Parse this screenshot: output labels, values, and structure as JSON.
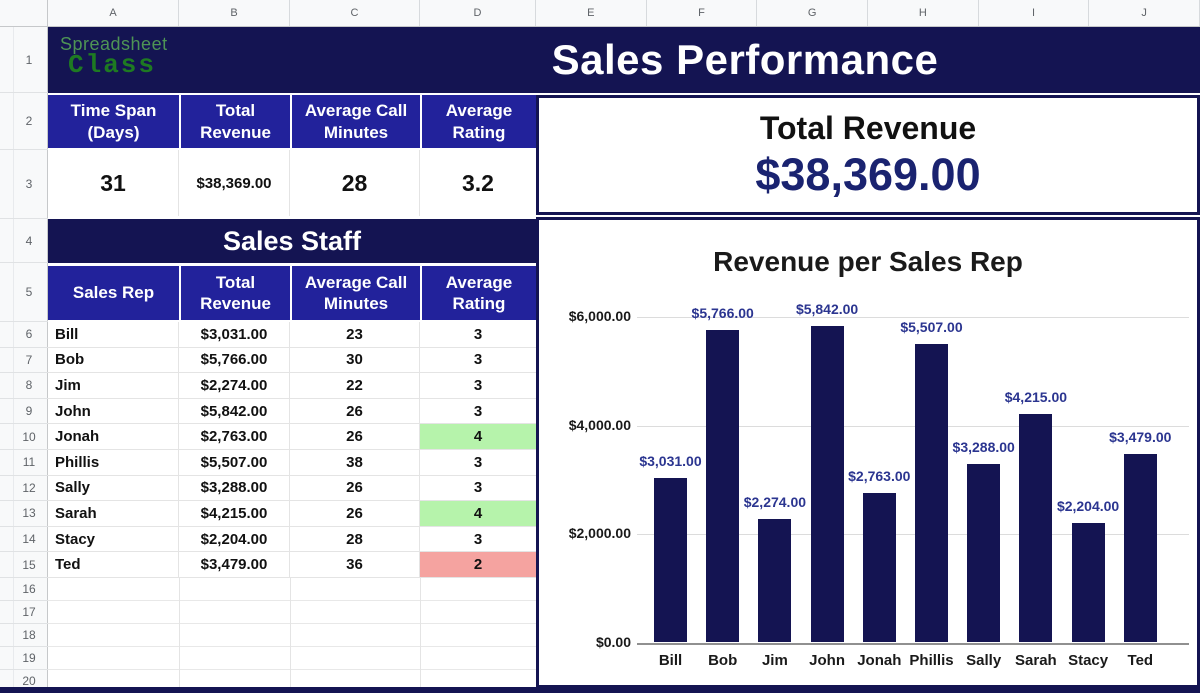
{
  "colors": {
    "navy": "#141452",
    "header_blue": "#22229b",
    "bar": "#141452",
    "chart_label_text": "#2b3590",
    "revenue_value_text": "#1a2370",
    "green_cell": "#b6f3ab",
    "red_cell": "#f5a3a0"
  },
  "grid": {
    "columns": [
      "A",
      "B",
      "C",
      "D",
      "E",
      "F",
      "G",
      "H",
      "I",
      "J"
    ],
    "rows": [
      "1",
      "2",
      "3",
      "4",
      "5",
      "6",
      "7",
      "8",
      "9",
      "10",
      "11",
      "12",
      "13",
      "14",
      "15",
      "16",
      "17",
      "18",
      "19",
      "20"
    ]
  },
  "logo": {
    "line1": "Spreadsheet",
    "line2": "Class"
  },
  "banner": {
    "title": "Sales Performance"
  },
  "summary": {
    "headers": [
      "Time Span (Days)",
      "Total Revenue",
      "Average Call Minutes",
      "Average Rating"
    ],
    "values": [
      "31",
      "$38,369.00",
      "28",
      "3.2"
    ]
  },
  "staff": {
    "title": "Sales Staff",
    "headers": [
      "Sales Rep",
      "Total Revenue",
      "Average Call Minutes",
      "Average Rating"
    ],
    "rows": [
      {
        "name": "Bill",
        "revenue": "$3,031.00",
        "minutes": "23",
        "rating": "3",
        "rating_color": ""
      },
      {
        "name": "Bob",
        "revenue": "$5,766.00",
        "minutes": "30",
        "rating": "3",
        "rating_color": ""
      },
      {
        "name": "Jim",
        "revenue": "$2,274.00",
        "minutes": "22",
        "rating": "3",
        "rating_color": ""
      },
      {
        "name": "John",
        "revenue": "$5,842.00",
        "minutes": "26",
        "rating": "3",
        "rating_color": ""
      },
      {
        "name": "Jonah",
        "revenue": "$2,763.00",
        "minutes": "26",
        "rating": "4",
        "rating_color": "green"
      },
      {
        "name": "Phillis",
        "revenue": "$5,507.00",
        "minutes": "38",
        "rating": "3",
        "rating_color": ""
      },
      {
        "name": "Sally",
        "revenue": "$3,288.00",
        "minutes": "26",
        "rating": "3",
        "rating_color": ""
      },
      {
        "name": "Sarah",
        "revenue": "$4,215.00",
        "minutes": "26",
        "rating": "4",
        "rating_color": "green"
      },
      {
        "name": "Stacy",
        "revenue": "$2,204.00",
        "minutes": "28",
        "rating": "3",
        "rating_color": ""
      },
      {
        "name": "Ted",
        "revenue": "$3,479.00",
        "minutes": "36",
        "rating": "2",
        "rating_color": "red"
      }
    ]
  },
  "revenue_panel": {
    "label": "Total Revenue",
    "value": "$38,369.00"
  },
  "chart_data": {
    "type": "bar",
    "title": "Revenue per Sales Rep",
    "categories": [
      "Bill",
      "Bob",
      "Jim",
      "John",
      "Jonah",
      "Phillis",
      "Sally",
      "Sarah",
      "Stacy",
      "Ted"
    ],
    "values": [
      3031,
      5766,
      2274,
      5842,
      2763,
      5507,
      3288,
      4215,
      2204,
      3479
    ],
    "value_labels": [
      "$3,031.00",
      "$5,766.00",
      "$2,274.00",
      "$5,842.00",
      "$2,763.00",
      "$5,507.00",
      "$3,288.00",
      "$4,215.00",
      "$2,204.00",
      "$3,479.00"
    ],
    "y_ticks": [
      {
        "label": "$6,000.00",
        "value": 6000
      },
      {
        "label": "$4,000.00",
        "value": 4000
      },
      {
        "label": "$2,000.00",
        "value": 2000
      },
      {
        "label": "$0.00",
        "value": 0
      }
    ],
    "ylim": [
      0,
      6000
    ],
    "grid": true,
    "legend": "none",
    "bar_color": "#141452"
  }
}
